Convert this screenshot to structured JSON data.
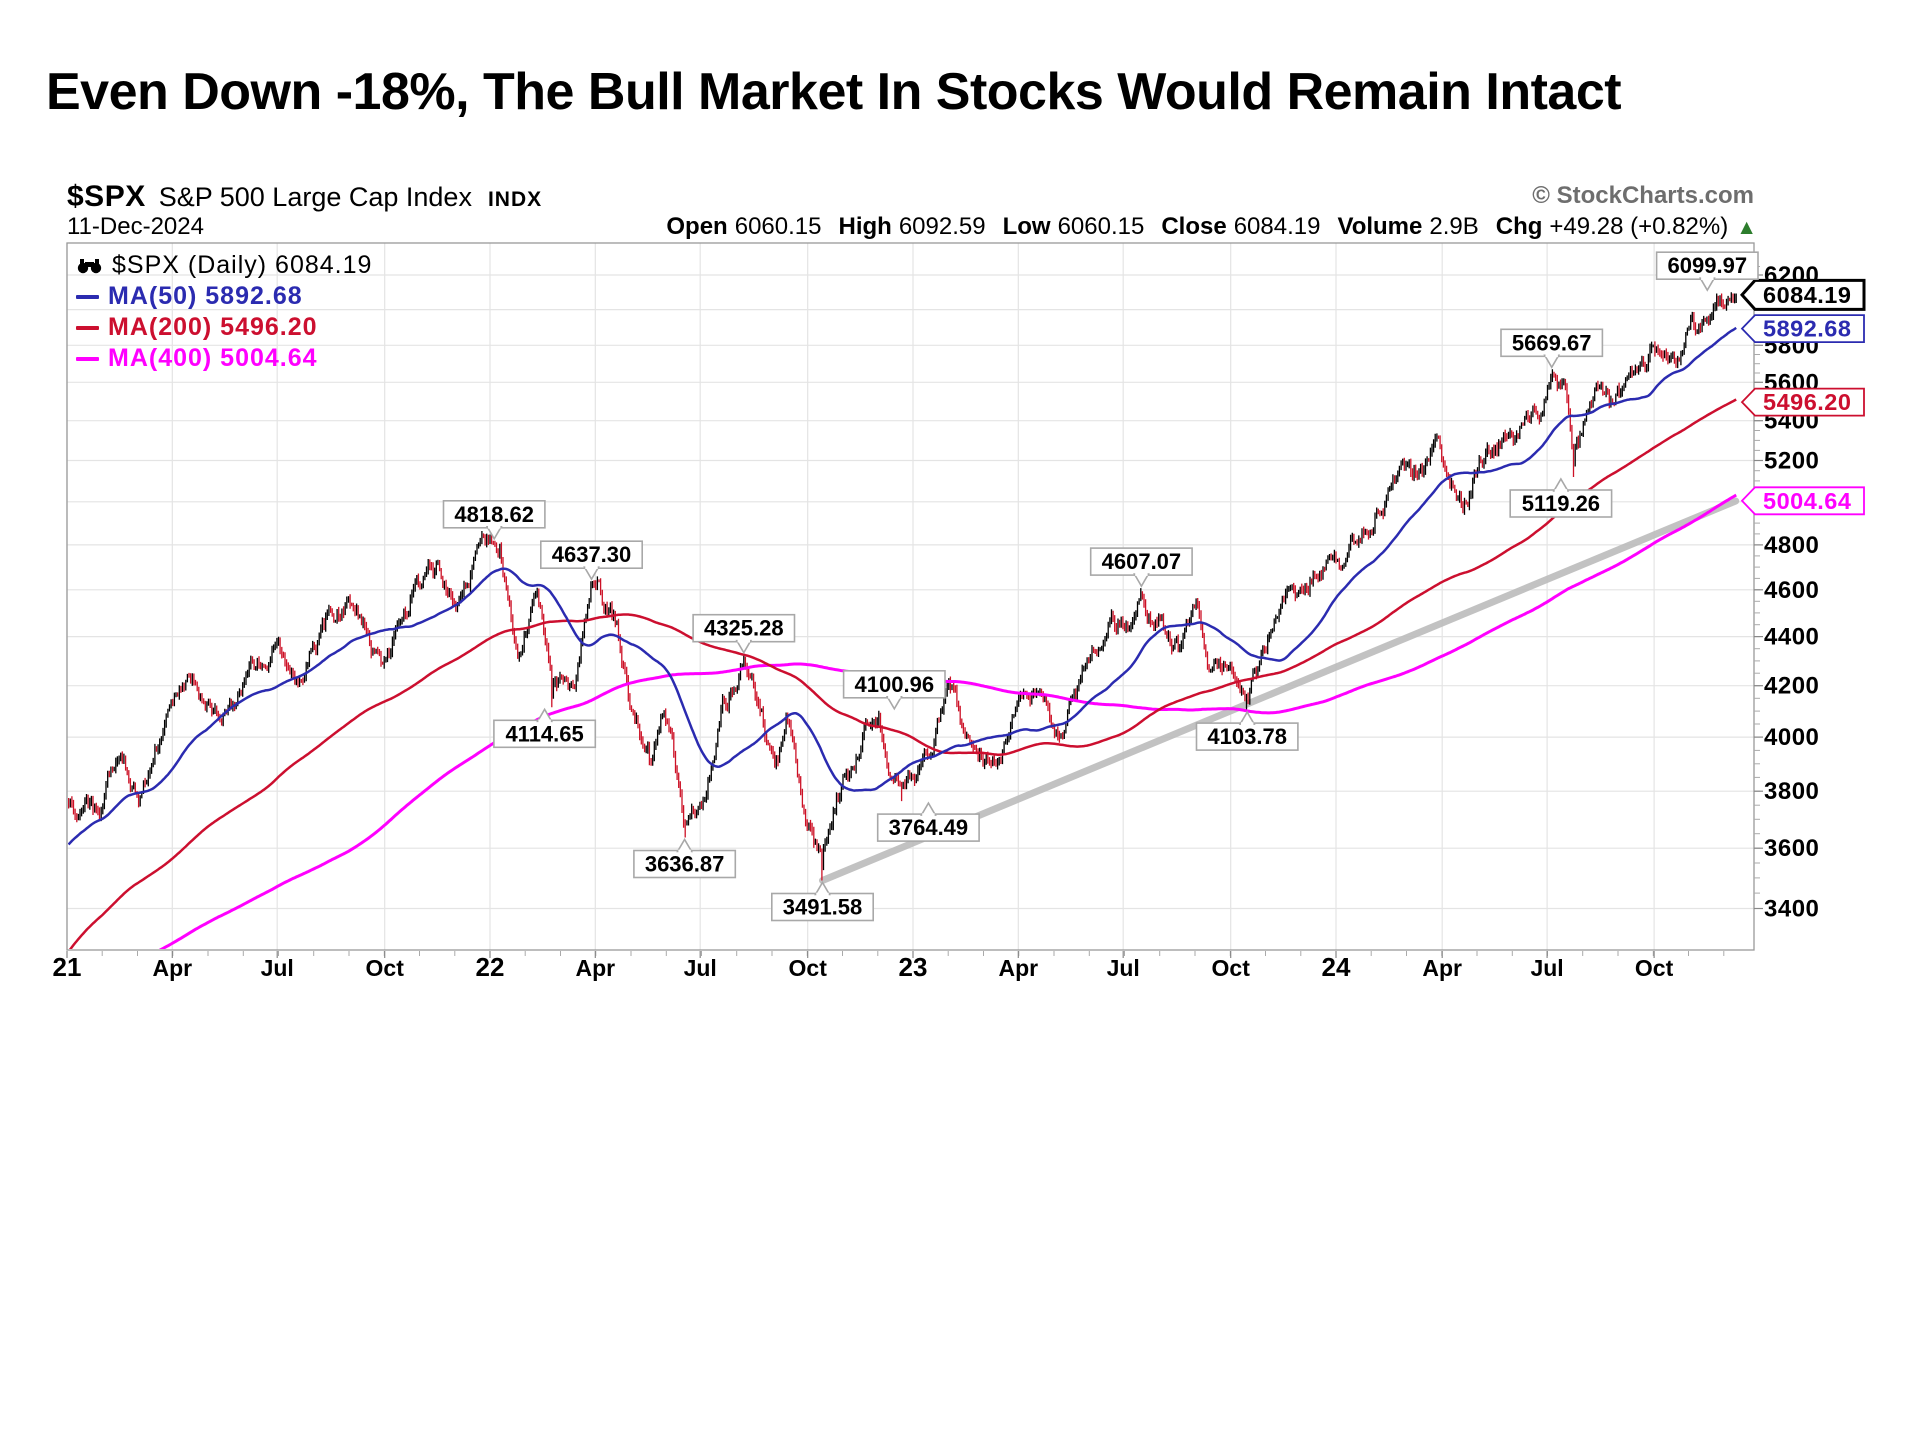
{
  "slide": {
    "title": "Even Down -18%, The Bull Market In Stocks Would Remain Intact"
  },
  "header": {
    "symbol": "$SPX",
    "name": "S&P 500 Large Cap Index",
    "exchange": "INDX",
    "copyright": "© StockCharts.com"
  },
  "quote": {
    "date": "11-Dec-2024",
    "open_label": "Open",
    "open": "6060.15",
    "high_label": "High",
    "high": "6092.59",
    "low_label": "Low",
    "low": "6060.15",
    "close_label": "Close",
    "close": "6084.19",
    "volume_label": "Volume",
    "volume": "2.9B",
    "chg_label": "Chg",
    "chg": "+49.28 (+0.82%)",
    "chg_icon": "▲",
    "chg_color": "#2d7d2d"
  },
  "legend": {
    "series": "$SPX (Daily) 6084.19",
    "items": [
      {
        "label": "MA(50) 5892.68",
        "color": "#2b2bb0"
      },
      {
        "label": "MA(200) 5496.20",
        "color": "#cc0f2f"
      },
      {
        "label": "MA(400) 5004.64",
        "color": "#ff00ff"
      }
    ]
  },
  "chart_data": {
    "type": "candlestick",
    "title": "$SPX S&P 500 Large Cap Index (Daily)",
    "yscale": "log",
    "ylabel": "",
    "xlabel": "",
    "y_axis": {
      "grid_min": 3400,
      "grid_max": 6200,
      "step": 200,
      "labeled": [
        6200,
        5800,
        5600,
        5400,
        5200,
        4800,
        4600,
        4400,
        4200,
        4000,
        3800,
        3600,
        3400
      ],
      "minor_tick_step": 50
    },
    "x_ticks": [
      {
        "label": "21",
        "frac": 2021.0,
        "bold": true
      },
      {
        "label": "Apr",
        "frac": 2021.249
      },
      {
        "label": "Jul",
        "frac": 2021.497
      },
      {
        "label": "Oct",
        "frac": 2021.751
      },
      {
        "label": "22",
        "frac": 2022.0,
        "bold": true
      },
      {
        "label": "Apr",
        "frac": 2022.249
      },
      {
        "label": "Jul",
        "frac": 2022.497
      },
      {
        "label": "Oct",
        "frac": 2022.751
      },
      {
        "label": "23",
        "frac": 2023.0,
        "bold": true
      },
      {
        "label": "Apr",
        "frac": 2023.249
      },
      {
        "label": "Jul",
        "frac": 2023.497
      },
      {
        "label": "Oct",
        "frac": 2023.751
      },
      {
        "label": "24",
        "frac": 2024.0,
        "bold": true
      },
      {
        "label": "Apr",
        "frac": 2024.251
      },
      {
        "label": "Jul",
        "frac": 2024.499
      },
      {
        "label": "Oct",
        "frac": 2024.752
      }
    ],
    "last_close": 6084.19,
    "close_waypoints": [
      [
        2019.5,
        2980
      ],
      [
        2019.75,
        2976
      ],
      [
        2020.0,
        3230
      ],
      [
        2020.12,
        3386
      ],
      [
        2020.22,
        2237
      ],
      [
        2020.3,
        2790
      ],
      [
        2020.35,
        2863
      ],
      [
        2020.44,
        3232
      ],
      [
        2020.55,
        3185
      ],
      [
        2020.67,
        3580
      ],
      [
        2020.73,
        3237
      ],
      [
        2020.85,
        3550
      ],
      [
        2020.92,
        3638
      ],
      [
        2021.0,
        3756
      ],
      [
        2021.08,
        3714
      ],
      [
        2021.12,
        3935
      ],
      [
        2021.17,
        3768
      ],
      [
        2021.22,
        3972
      ],
      [
        2021.29,
        4185
      ],
      [
        2021.36,
        4063
      ],
      [
        2021.45,
        4255
      ],
      [
        2021.5,
        4352
      ],
      [
        2021.54,
        4258
      ],
      [
        2021.62,
        4480
      ],
      [
        2021.67,
        4537
      ],
      [
        2021.72,
        4357
      ],
      [
        2021.75,
        4300
      ],
      [
        2021.82,
        4605
      ],
      [
        2021.88,
        4705
      ],
      [
        2021.92,
        4538
      ],
      [
        2021.97,
        4766
      ],
      [
        2022.01,
        4793
      ],
      [
        2022.07,
        4326
      ],
      [
        2022.11,
        4587
      ],
      [
        2022.148,
        4225
      ],
      [
        2022.2,
        4173
      ],
      [
        2022.24,
        4631
      ],
      [
        2022.3,
        4462
      ],
      [
        2022.33,
        4131
      ],
      [
        2022.38,
        3901
      ],
      [
        2022.41,
        4158
      ],
      [
        2022.46,
        3674
      ],
      [
        2022.5,
        3785
      ],
      [
        2022.55,
        4130
      ],
      [
        2022.6,
        4305
      ],
      [
        2022.65,
        4030
      ],
      [
        2022.68,
        3908
      ],
      [
        2022.7,
        4110
      ],
      [
        2022.75,
        3655
      ],
      [
        2022.786,
        3583
      ],
      [
        2022.82,
        3770
      ],
      [
        2022.84,
        3856
      ],
      [
        2022.87,
        3957
      ],
      [
        2022.918,
        4076
      ],
      [
        2022.95,
        3852
      ],
      [
        2022.975,
        3822
      ],
      [
        2023.0,
        3839
      ],
      [
        2023.05,
        4016
      ],
      [
        2023.09,
        4180
      ],
      [
        2023.13,
        3970
      ],
      [
        2023.2,
        3916
      ],
      [
        2023.26,
        4109
      ],
      [
        2023.31,
        4169
      ],
      [
        2023.34,
        4048
      ],
      [
        2023.38,
        4136
      ],
      [
        2023.42,
        4282
      ],
      [
        2023.46,
        4448
      ],
      [
        2023.5,
        4450
      ],
      [
        2023.54,
        4567
      ],
      [
        2023.58,
        4478
      ],
      [
        2023.63,
        4370
      ],
      [
        2023.67,
        4516
      ],
      [
        2023.7,
        4330
      ],
      [
        2023.74,
        4288
      ],
      [
        2023.79,
        4137
      ],
      [
        2023.83,
        4358
      ],
      [
        2023.87,
        4550
      ],
      [
        2023.92,
        4594
      ],
      [
        2023.99,
        4770
      ],
      [
        2024.01,
        4697
      ],
      [
        2024.06,
        4845
      ],
      [
        2024.1,
        5005
      ],
      [
        2024.15,
        5096
      ],
      [
        2024.18,
        5150
      ],
      [
        2024.24,
        5254
      ],
      [
        2024.3,
        4990
      ],
      [
        2024.34,
        5180
      ],
      [
        2024.38,
        5297
      ],
      [
        2024.42,
        5266
      ],
      [
        2024.46,
        5433
      ],
      [
        2024.49,
        5475
      ],
      [
        2024.51,
        5635
      ],
      [
        2024.545,
        5555
      ],
      [
        2024.56,
        5240
      ],
      [
        2024.6,
        5530
      ],
      [
        2024.62,
        5625
      ],
      [
        2024.655,
        5470
      ],
      [
        2024.68,
        5570
      ],
      [
        2024.7,
        5650
      ],
      [
        2024.74,
        5745
      ],
      [
        2024.78,
        5815
      ],
      [
        2024.81,
        5780
      ],
      [
        2024.825,
        5860
      ],
      [
        2024.84,
        5985
      ],
      [
        2024.87,
        5905
      ],
      [
        2024.9,
        6035
      ],
      [
        2024.933,
        6075
      ],
      [
        2024.949,
        6084.19
      ]
    ],
    "annotations": [
      {
        "text": "4818.62",
        "frac": 2022.01,
        "price": 4818.62,
        "dir": "above"
      },
      {
        "text": "4637.30",
        "frac": 2022.24,
        "price": 4637.3,
        "dir": "above"
      },
      {
        "text": "4114.65",
        "frac": 2022.148,
        "price": 4114.65,
        "dir": "below",
        "dx": -8
      },
      {
        "text": "4325.28",
        "frac": 2022.6,
        "price": 4325.28,
        "dir": "above"
      },
      {
        "text": "3636.87",
        "frac": 2022.46,
        "price": 3636.87,
        "dir": "below"
      },
      {
        "text": "3491.58",
        "frac": 2022.786,
        "price": 3491.58,
        "dir": "below"
      },
      {
        "text": "4100.96",
        "frac": 2022.918,
        "price": 4100.96,
        "dir": "above",
        "dx": 16
      },
      {
        "text": "3764.49",
        "frac": 2022.975,
        "price": 3764.49,
        "dir": "below",
        "dx": 26
      },
      {
        "text": "4607.07",
        "frac": 2023.54,
        "price": 4607.07,
        "dir": "above"
      },
      {
        "text": "4103.78",
        "frac": 2023.79,
        "price": 4103.78,
        "dir": "below"
      },
      {
        "text": "5669.67",
        "frac": 2024.51,
        "price": 5669.67,
        "dir": "above"
      },
      {
        "text": "5119.26",
        "frac": 2024.56,
        "price": 5119.26,
        "dir": "below",
        "dx": -12
      },
      {
        "text": "6099.97",
        "frac": 2024.933,
        "price": 6099.97,
        "dir": "above",
        "dx": -22
      }
    ],
    "price_boxes": [
      {
        "text": "6084.19",
        "price": 6084.19,
        "color": "#000000",
        "bold": true
      },
      {
        "text": "5892.68",
        "price": 5892.68,
        "color": "#2b2bb0"
      },
      {
        "text": "5496.20",
        "price": 5496.2,
        "color": "#cc0f2f"
      },
      {
        "text": "5004.64",
        "price": 5004.64,
        "color": "#ff00ff"
      }
    ],
    "moving_averages": [
      {
        "window": 50,
        "value": 5892.68,
        "color": "#2b2bb0"
      },
      {
        "window": 200,
        "value": 5496.2,
        "color": "#cc0f2f"
      },
      {
        "window": 400,
        "value": 5004.64,
        "color": "#ff00ff"
      }
    ],
    "trendline": {
      "frac1": 2022.786,
      "price1": 3491.58,
      "frac2": 2024.945,
      "price2": 5004
    },
    "colors": {
      "up": "#000000",
      "down": "#cc1126",
      "grid": "#e4e4e4",
      "frame": "#999999",
      "trend": "#bdbdbd",
      "callout_border": "#a8a8a8",
      "tick": "#888888",
      "minor_tick": "#aaaaaa"
    }
  }
}
